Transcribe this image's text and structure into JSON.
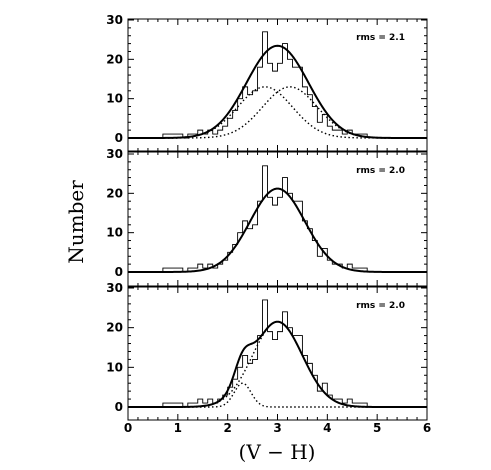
{
  "chart_data": {
    "type": "histogram",
    "xlabel": "(V − H)",
    "ylabel": "Number",
    "xlim": [
      0,
      6
    ],
    "ylim": [
      0,
      30
    ],
    "x_ticks": [
      0,
      1,
      2,
      3,
      4,
      5,
      6
    ],
    "y_ticks": [
      0,
      10,
      20,
      30
    ],
    "histogram": {
      "bin_edges": [
        0.7,
        0.8,
        0.9,
        1.0,
        1.1,
        1.2,
        1.3,
        1.4,
        1.5,
        1.6,
        1.7,
        1.8,
        1.9,
        2.0,
        2.1,
        2.2,
        2.3,
        2.4,
        2.5,
        2.6,
        2.7,
        2.8,
        2.9,
        3.0,
        3.1,
        3.2,
        3.3,
        3.4,
        3.5,
        3.6,
        3.7,
        3.8,
        3.9,
        4.0,
        4.1,
        4.2,
        4.3,
        4.4,
        4.5,
        4.6,
        4.7,
        4.8
      ],
      "counts": [
        1,
        1,
        1,
        1,
        0,
        1,
        1,
        2,
        1,
        2,
        1,
        2,
        3,
        5,
        7,
        10,
        13,
        11,
        12,
        18,
        27,
        19,
        17,
        19,
        24,
        20,
        18,
        18,
        13,
        11,
        8,
        4,
        6,
        3,
        2,
        2,
        1,
        2,
        1,
        1,
        1
      ]
    },
    "panels": [
      {
        "rms_label": "rms = 2.1",
        "model": "two-component gaussian",
        "components": [
          {
            "mean": 2.75,
            "sigma": 0.55,
            "amplitude": 13,
            "style": "dotted"
          },
          {
            "mean": 3.25,
            "sigma": 0.55,
            "amplitude": 13,
            "style": "dotted"
          }
        ],
        "sum_curve": true
      },
      {
        "rms_label": "rms = 2.0",
        "model": "single gaussian",
        "components": [
          {
            "mean": 3.0,
            "sigma": 0.55,
            "amplitude": 21.2,
            "style": "solid"
          }
        ],
        "sum_curve": false
      },
      {
        "rms_label": "rms = 2.0",
        "model": "two-component gaussian",
        "components": [
          {
            "mean": 2.3,
            "sigma": 0.17,
            "amplitude": 6,
            "style": "dotted"
          },
          {
            "mean": 3.0,
            "sigma": 0.5,
            "amplitude": 21.5,
            "style": "dotted"
          }
        ],
        "sum_curve": true
      }
    ]
  }
}
